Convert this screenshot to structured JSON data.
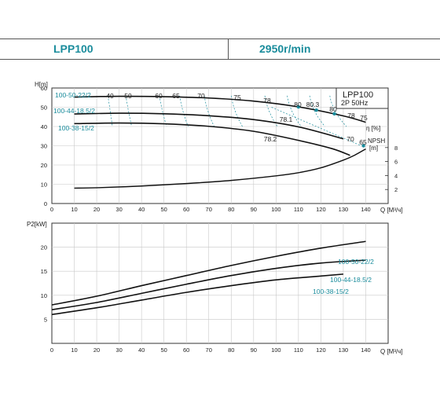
{
  "header": {
    "model": "LPP100",
    "speed": "2950r/min"
  },
  "box": {
    "model": "LPP100",
    "spec": "2P  50Hz"
  },
  "chart_data": [
    {
      "type": "line",
      "title": "",
      "ylabel": "H[m]",
      "xlabel": "Q [M³/ч]",
      "xlim": [
        0,
        150
      ],
      "ylim": [
        0,
        60
      ],
      "xticks": [
        "0",
        "10",
        "20",
        "30",
        "40",
        "50",
        "60",
        "70",
        "80",
        "90",
        "100",
        "110",
        "120",
        "130",
        "140"
      ],
      "yticks": [
        "0",
        "10",
        "20",
        "30",
        "40",
        "50",
        "60"
      ],
      "grid": true,
      "series": [
        {
          "name": "100-50-22/2",
          "x": [
            10,
            30,
            50,
            70,
            90,
            110,
            130,
            140
          ],
          "y": [
            55.3,
            55.7,
            55.5,
            54.8,
            53.2,
            50.2,
            45.5,
            42.2
          ]
        },
        {
          "name": "100-44-18.5/2",
          "x": [
            10,
            30,
            50,
            70,
            90,
            110,
            130
          ],
          "y": [
            46.5,
            46.9,
            46.6,
            45.6,
            43.6,
            39.8,
            33.6
          ]
        },
        {
          "name": "100-38-15/2",
          "x": [
            10,
            30,
            50,
            70,
            90,
            110,
            125,
            133
          ],
          "y": [
            41.5,
            41.8,
            41.4,
            40.1,
            37.5,
            32.8,
            28.5,
            25.0
          ]
        }
      ],
      "efficiency_labels": [
        "40",
        "50",
        "60",
        "65",
        "70",
        "75",
        "78",
        "80",
        "80.3",
        "80",
        "78",
        "75",
        "78.1",
        "78.2",
        "70",
        "65"
      ],
      "efficiency_axis_label": "η [%]",
      "npsh": {
        "label": "NPSH\n[m]",
        "ylim": [
          0,
          10
        ],
        "yticks": [
          "2",
          "4",
          "6",
          "8"
        ],
        "x": [
          10,
          20,
          40,
          60,
          80,
          100,
          110,
          120,
          130,
          135,
          140
        ],
        "y": [
          2.2,
          2.25,
          2.5,
          2.85,
          3.3,
          3.95,
          4.4,
          5.1,
          6.2,
          6.9,
          7.8
        ]
      }
    },
    {
      "type": "line",
      "title": "",
      "ylabel": "P2[kW]",
      "xlabel": "Q [M³/ч]",
      "xlim": [
        0,
        150
      ],
      "ylim": [
        0,
        25
      ],
      "xticks": [
        "0",
        "10",
        "20",
        "30",
        "40",
        "50",
        "60",
        "70",
        "80",
        "90",
        "100",
        "110",
        "120",
        "130",
        "140"
      ],
      "yticks": [
        "5",
        "10",
        "15",
        "20"
      ],
      "grid": true,
      "series": [
        {
          "name": "100-50-22/2",
          "x": [
            0,
            20,
            40,
            60,
            80,
            100,
            120,
            140
          ],
          "y": [
            8.0,
            9.8,
            12.0,
            14.1,
            16.2,
            18.1,
            19.8,
            21.2
          ]
        },
        {
          "name": "100-44-18.5/2",
          "x": [
            0,
            20,
            40,
            60,
            80,
            100,
            120,
            140
          ],
          "y": [
            7.0,
            8.5,
            10.4,
            12.3,
            14.1,
            15.6,
            16.7,
            17.3
          ]
        },
        {
          "name": "100-38-15/2",
          "x": [
            0,
            20,
            40,
            60,
            80,
            100,
            120,
            130
          ],
          "y": [
            6.0,
            7.4,
            9.0,
            10.6,
            12.0,
            13.2,
            14.0,
            14.4
          ]
        }
      ]
    }
  ]
}
